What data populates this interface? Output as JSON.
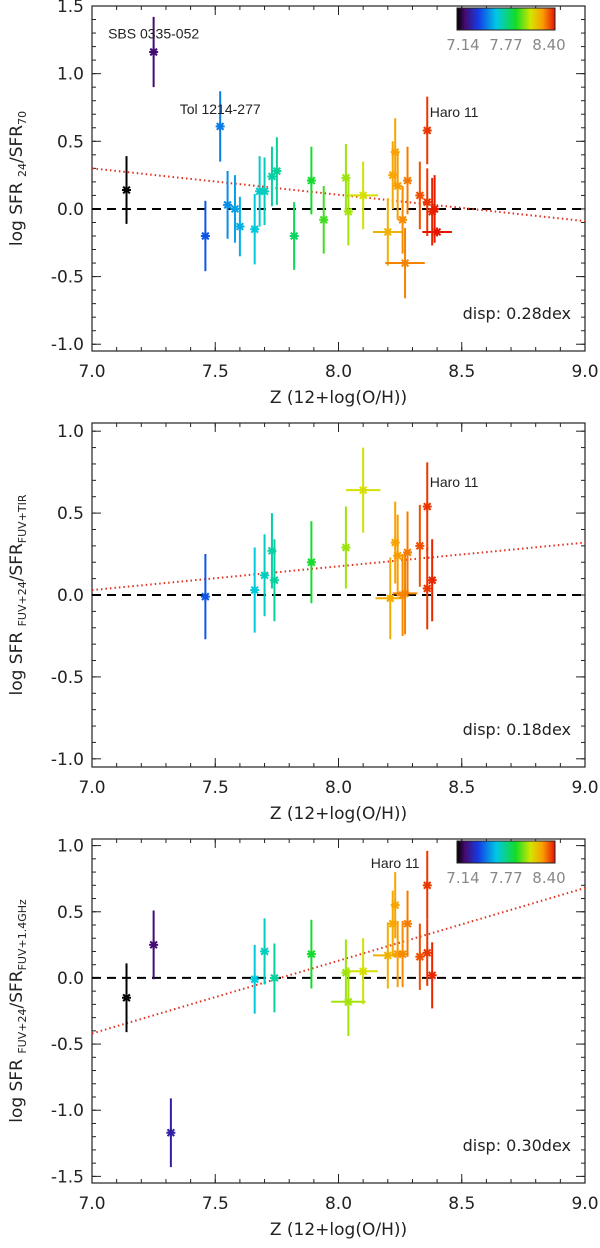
{
  "chart_data": [
    {
      "type": "scatter",
      "panel": "top",
      "ylabel_main": "log SFR",
      "ylabel_sub1": "24",
      "ylabel_sub2": "70",
      "xlabel": "Z (12+log(O/H))",
      "xlim": [
        7.0,
        9.0
      ],
      "ylim": [
        -1.05,
        1.5
      ],
      "xticks": [
        7.0,
        7.5,
        8.0,
        8.5,
        9.0
      ],
      "yticks": [
        -1.0,
        -0.5,
        0.0,
        0.5,
        1.0,
        1.5
      ],
      "xtick_labels": [
        "7.0",
        "7.5",
        "8.0",
        "8.5",
        "9.0"
      ],
      "ytick_labels": [
        "-1.0",
        "-0.5",
        "0.0",
        "0.5",
        "1.0",
        "1.5"
      ],
      "fit_line": [
        [
          7.0,
          0.3
        ],
        [
          9.0,
          -0.09
        ]
      ],
      "zero_line": 0.0,
      "dispersion": "disp: 0.28dex",
      "points": [
        {
          "x": 7.14,
          "y": 0.14,
          "yerr": 0.25,
          "xerr": 0.0
        },
        {
          "x": 7.25,
          "y": 1.16,
          "yerr": 0.26,
          "xerr": 0.0
        },
        {
          "x": 7.46,
          "y": -0.2,
          "yerr": 0.26,
          "xerr": 0.0
        },
        {
          "x": 7.52,
          "y": 0.61,
          "yerr": 0.26,
          "xerr": 0.0
        },
        {
          "x": 7.55,
          "y": 0.03,
          "yerr": 0.25,
          "xerr": 0.0
        },
        {
          "x": 7.58,
          "y": 0.0,
          "yerr": 0.25,
          "xerr": 0.0
        },
        {
          "x": 7.6,
          "y": -0.13,
          "yerr": 0.22,
          "xerr": 0.0
        },
        {
          "x": 7.66,
          "y": -0.15,
          "yerr": 0.26,
          "xerr": 0.0
        },
        {
          "x": 7.68,
          "y": 0.13,
          "yerr": 0.26,
          "xerr": 0.0
        },
        {
          "x": 7.7,
          "y": 0.13,
          "yerr": 0.25,
          "xerr": 0.0
        },
        {
          "x": 7.73,
          "y": 0.24,
          "yerr": 0.22,
          "xerr": 0.0
        },
        {
          "x": 7.75,
          "y": 0.28,
          "yerr": 0.25,
          "xerr": 0.0
        },
        {
          "x": 7.82,
          "y": -0.2,
          "yerr": 0.25,
          "xerr": 0.0
        },
        {
          "x": 7.89,
          "y": 0.21,
          "yerr": 0.25,
          "xerr": 0.0
        },
        {
          "x": 7.94,
          "y": -0.08,
          "yerr": 0.25,
          "xerr": 0.0
        },
        {
          "x": 8.03,
          "y": 0.23,
          "yerr": 0.25,
          "xerr": 0.0
        },
        {
          "x": 8.04,
          "y": -0.02,
          "yerr": 0.25,
          "xerr": 0.0
        },
        {
          "x": 8.1,
          "y": 0.1,
          "yerr": 0.25,
          "xerr": 0.06
        },
        {
          "x": 8.2,
          "y": -0.17,
          "yerr": 0.25,
          "xerr": 0.06
        },
        {
          "x": 8.22,
          "y": 0.25,
          "yerr": 0.25,
          "xerr": 0.0
        },
        {
          "x": 8.23,
          "y": 0.42,
          "yerr": 0.25,
          "xerr": 0.0
        },
        {
          "x": 8.24,
          "y": 0.17,
          "yerr": 0.25,
          "xerr": 0.0
        },
        {
          "x": 8.26,
          "y": -0.08,
          "yerr": 0.25,
          "xerr": 0.0
        },
        {
          "x": 8.27,
          "y": -0.4,
          "yerr": 0.26,
          "xerr": 0.08
        },
        {
          "x": 8.28,
          "y": 0.21,
          "yerr": 0.25,
          "xerr": 0.0
        },
        {
          "x": 8.33,
          "y": 0.1,
          "yerr": 0.25,
          "xerr": 0.0
        },
        {
          "x": 8.36,
          "y": 0.58,
          "yerr": 0.25,
          "xerr": 0.0
        },
        {
          "x": 8.36,
          "y": 0.05,
          "yerr": 0.25,
          "xerr": 0.0
        },
        {
          "x": 8.38,
          "y": -0.02,
          "yerr": 0.25,
          "xerr": 0.0
        },
        {
          "x": 8.39,
          "y": 0.0,
          "yerr": 0.25,
          "xerr": 0.0
        },
        {
          "x": 8.4,
          "y": -0.17,
          "yerr": 0.0,
          "xerr": 0.06
        }
      ],
      "annotations": [
        {
          "text": "SBS 0335-052",
          "x": 7.25,
          "y": 1.26,
          "anchor": "middle"
        },
        {
          "text": "Tol 1214-277",
          "x": 7.52,
          "y": 0.7,
          "anchor": "middle"
        },
        {
          "text": "Haro 11",
          "x": 8.37,
          "y": 0.68,
          "anchor": "start"
        }
      ],
      "colorbar": {
        "show": true,
        "min": 7.14,
        "max": 8.4,
        "tick_labels": [
          "7.14",
          "7.77",
          "8.40"
        ]
      }
    },
    {
      "type": "scatter",
      "panel": "middle",
      "ylabel_main": "log SFR",
      "ylabel_sub1": "FUV+24",
      "ylabel_sub2": "FUV+TIR",
      "xlabel": "Z (12+log(O/H))",
      "xlim": [
        7.0,
        9.0
      ],
      "ylim": [
        -1.05,
        1.05
      ],
      "xticks": [
        7.0,
        7.5,
        8.0,
        8.5,
        9.0
      ],
      "yticks": [
        -1.0,
        -0.5,
        0.0,
        0.5,
        1.0
      ],
      "xtick_labels": [
        "7.0",
        "7.5",
        "8.0",
        "8.5",
        "9.0"
      ],
      "ytick_labels": [
        "-1.0",
        "-0.5",
        "0.0",
        "0.5",
        "1.0"
      ],
      "fit_line": [
        [
          7.0,
          0.03
        ],
        [
          9.0,
          0.32
        ]
      ],
      "zero_line": 0.0,
      "dispersion": "disp: 0.18dex",
      "points": [
        {
          "x": 7.46,
          "y": -0.01,
          "yerr": 0.26,
          "xerr": 0.0
        },
        {
          "x": 7.66,
          "y": 0.03,
          "yerr": 0.26,
          "xerr": 0.0
        },
        {
          "x": 7.7,
          "y": 0.12,
          "yerr": 0.25,
          "xerr": 0.0
        },
        {
          "x": 7.73,
          "y": 0.27,
          "yerr": 0.23,
          "xerr": 0.0
        },
        {
          "x": 7.74,
          "y": 0.09,
          "yerr": 0.25,
          "xerr": 0.0
        },
        {
          "x": 7.89,
          "y": 0.2,
          "yerr": 0.25,
          "xerr": 0.0
        },
        {
          "x": 8.03,
          "y": 0.29,
          "yerr": 0.25,
          "xerr": 0.0
        },
        {
          "x": 8.1,
          "y": 0.64,
          "yerr": 0.26,
          "xerr": 0.07
        },
        {
          "x": 8.21,
          "y": -0.02,
          "yerr": 0.25,
          "xerr": 0.06
        },
        {
          "x": 8.23,
          "y": 0.32,
          "yerr": 0.25,
          "xerr": 0.0
        },
        {
          "x": 8.24,
          "y": 0.24,
          "yerr": 0.25,
          "xerr": 0.0
        },
        {
          "x": 8.26,
          "y": 0.0,
          "yerr": 0.25,
          "xerr": 0.0
        },
        {
          "x": 8.27,
          "y": 0.01,
          "yerr": 0.25,
          "xerr": 0.05
        },
        {
          "x": 8.28,
          "y": 0.26,
          "yerr": 0.25,
          "xerr": 0.0
        },
        {
          "x": 8.33,
          "y": 0.3,
          "yerr": 0.25,
          "xerr": 0.0
        },
        {
          "x": 8.36,
          "y": 0.54,
          "yerr": 0.27,
          "xerr": 0.0
        },
        {
          "x": 8.36,
          "y": 0.04,
          "yerr": 0.25,
          "xerr": 0.0
        },
        {
          "x": 8.38,
          "y": 0.09,
          "yerr": 0.25,
          "xerr": 0.0
        }
      ],
      "annotations": [
        {
          "text": "Haro 11",
          "x": 8.37,
          "y": 0.66,
          "anchor": "start"
        }
      ],
      "colorbar": {
        "show": false
      }
    },
    {
      "type": "scatter",
      "panel": "bottom",
      "ylabel_main": "log SFR",
      "ylabel_sub1": "FUV+24",
      "ylabel_sub2": "FUV+1.4GHz",
      "xlabel": "Z (12+log(O/H))",
      "xlim": [
        7.0,
        9.0
      ],
      "ylim": [
        -1.55,
        1.05
      ],
      "xticks": [
        7.0,
        7.5,
        8.0,
        8.5,
        9.0
      ],
      "yticks": [
        -1.5,
        -1.0,
        -0.5,
        0.0,
        0.5,
        1.0
      ],
      "xtick_labels": [
        "7.0",
        "7.5",
        "8.0",
        "8.5",
        "9.0"
      ],
      "ytick_labels": [
        "-1.5",
        "-1.0",
        "-0.5",
        "0.0",
        "0.5",
        "1.0"
      ],
      "fit_line": [
        [
          7.0,
          -0.42
        ],
        [
          9.0,
          0.68
        ]
      ],
      "zero_line": 0.0,
      "dispersion": "disp: 0.30dex",
      "points": [
        {
          "x": 7.14,
          "y": -0.15,
          "yerr": 0.26,
          "xerr": 0.0
        },
        {
          "x": 7.25,
          "y": 0.25,
          "yerr": 0.26,
          "xerr": 0.0
        },
        {
          "x": 7.32,
          "y": -1.17,
          "yerr": 0.26,
          "xerr": 0.0
        },
        {
          "x": 7.66,
          "y": -0.01,
          "yerr": 0.26,
          "xerr": 0.0
        },
        {
          "x": 7.7,
          "y": 0.2,
          "yerr": 0.25,
          "xerr": 0.0
        },
        {
          "x": 7.74,
          "y": 0.0,
          "yerr": 0.26,
          "xerr": 0.0
        },
        {
          "x": 7.89,
          "y": 0.18,
          "yerr": 0.26,
          "xerr": 0.0
        },
        {
          "x": 8.03,
          "y": 0.04,
          "yerr": 0.25,
          "xerr": 0.0
        },
        {
          "x": 8.04,
          "y": -0.18,
          "yerr": 0.26,
          "xerr": 0.07
        },
        {
          "x": 8.1,
          "y": 0.05,
          "yerr": 0.25,
          "xerr": 0.06
        },
        {
          "x": 8.2,
          "y": 0.17,
          "yerr": 0.25,
          "xerr": 0.06
        },
        {
          "x": 8.22,
          "y": 0.41,
          "yerr": 0.25,
          "xerr": 0.0
        },
        {
          "x": 8.23,
          "y": 0.55,
          "yerr": 0.25,
          "xerr": 0.0
        },
        {
          "x": 8.24,
          "y": 0.18,
          "yerr": 0.25,
          "xerr": 0.0
        },
        {
          "x": 8.26,
          "y": 0.18,
          "yerr": 0.25,
          "xerr": 0.0
        },
        {
          "x": 8.28,
          "y": 0.41,
          "yerr": 0.25,
          "xerr": 0.0
        },
        {
          "x": 8.33,
          "y": 0.16,
          "yerr": 0.25,
          "xerr": 0.0
        },
        {
          "x": 8.36,
          "y": 0.7,
          "yerr": 0.26,
          "xerr": 0.0
        },
        {
          "x": 8.36,
          "y": 0.19,
          "yerr": 0.25,
          "xerr": 0.0
        },
        {
          "x": 8.38,
          "y": 0.02,
          "yerr": 0.25,
          "xerr": 0.0
        }
      ],
      "annotations": [
        {
          "text": "Haro 11",
          "x": 8.23,
          "y": 0.83,
          "anchor": "middle"
        }
      ],
      "colorbar": {
        "show": true,
        "min": 7.14,
        "max": 8.4,
        "tick_labels": [
          "7.14",
          "7.77",
          "8.40"
        ]
      }
    }
  ],
  "colors": {
    "fit_line": "#e0301e",
    "zero_line": "#000000",
    "axes": "#222222"
  }
}
